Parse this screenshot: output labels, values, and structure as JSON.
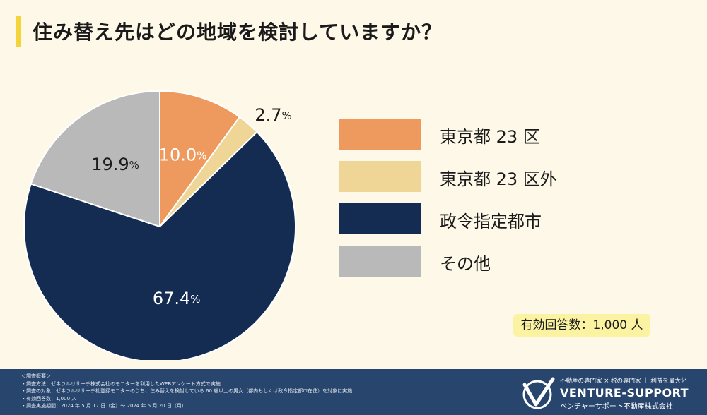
{
  "title": "住み替え先はどの地域を検討していますか？",
  "chart_data": {
    "type": "pie",
    "title": "住み替え先はどの地域を検討していますか？",
    "categories": [
      "東京都 23 区",
      "東京都 23 区外",
      "政令指定都市",
      "その他"
    ],
    "values": [
      10.0,
      2.7,
      67.4,
      19.9
    ],
    "value_labels": [
      "10.0",
      "2.7",
      "67.4",
      "19.9"
    ],
    "unit": "%",
    "colors": [
      "#ee9a5e",
      "#efd596",
      "#142c52",
      "#b9b9b9"
    ],
    "label_colors": [
      "#ffffff",
      "#1a1a1a",
      "#ffffff",
      "#1a1a1a"
    ],
    "legend_position": "right"
  },
  "respondents": "有効回答数：1,000 人",
  "footer": {
    "survey": [
      "＜調査概要＞",
      "・調査方法：ゼネラルリサーチ株式会社のモニターを利用したWEBアンケート方式で実施",
      "・調査の対象：ゼネラルリサーチ社登録モニターのうち、住み替えを検討している 60 歳以上の男女（都内もしくは政令指定都市在住）を対象に実施",
      "・有効回答数：1,000 人",
      "・調査実施期間：2024 年 5 月 17 日（金）～ 2024 年 5 月 20 日（月）"
    ],
    "brand_tagline": "不動産の専門家 × 税の専門家 ｜ 利益を最大化",
    "brand_name": "VENTURE-SUPPORT",
    "brand_sub": "ベンチャーサポート不動産株式会社"
  }
}
